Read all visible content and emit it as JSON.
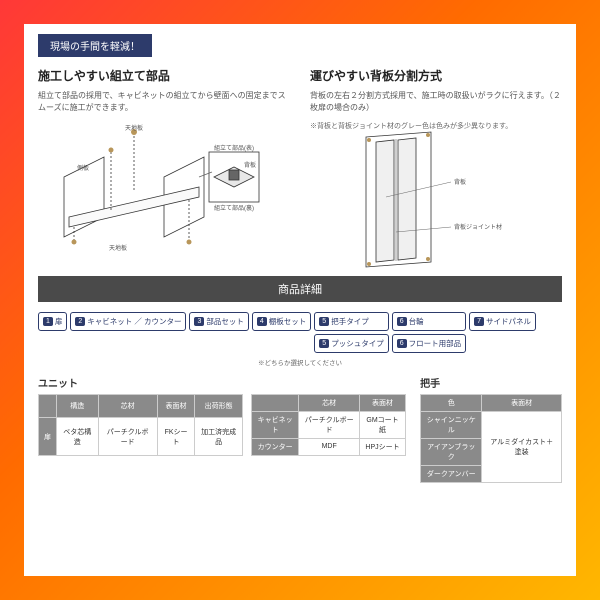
{
  "badge": "現場の手間を軽減！",
  "left": {
    "title": "施工しやすい組立て部品",
    "desc": "組立て部品の採用で、キャビネットの組立てから壁面への固定までスムーズに施工ができます。",
    "labels": {
      "top": "天地板",
      "side": "側板",
      "part": "組立て部品(表)",
      "back": "背板",
      "bottom": "天地板",
      "det": "組立て部品(裏)"
    }
  },
  "right": {
    "title": "運びやすい背板分割方式",
    "desc": "背板の左右２分割方式採用で、施工時の取扱いがラクに行えます。（２枚扉の場合のみ）",
    "note": "※背板と背板ジョイント材のグレー色は色みが多少異なります。",
    "labels": {
      "back": "背板",
      "joint": "背板ジョイント材"
    }
  },
  "sectionTitle": "商品詳細",
  "flow": [
    {
      "n": "1",
      "t": "扉"
    },
    {
      "n": "2",
      "t": "キャビネット ／ カウンター"
    },
    {
      "n": "3",
      "t": "部品セット"
    },
    {
      "n": "4",
      "t": "棚板セット"
    }
  ],
  "flowCol1": [
    {
      "n": "5",
      "t": "把手タイプ"
    },
    {
      "n": "5",
      "t": "プッシュタイプ"
    }
  ],
  "flowCol2": [
    {
      "n": "6",
      "t": "台輪"
    },
    {
      "n": "6",
      "t": "フロート用部品"
    }
  ],
  "flowLast": {
    "n": "7",
    "t": "サイドパネル"
  },
  "flowNote": "※どちらか選択してください",
  "unit": {
    "title": "ユニット",
    "h": [
      "構造",
      "芯材",
      "表面材",
      "出荷形態"
    ],
    "r": [
      "扉",
      "ベタ芯構造",
      "パーチクルボード",
      "FKシート",
      "加工済完成品"
    ],
    "h2": [
      "",
      "芯材",
      "表面材"
    ],
    "r2": [
      [
        "キャビネット",
        "パーチクルボード",
        "GMコート紙"
      ],
      [
        "カウンター",
        "MDF",
        "HPJシート"
      ]
    ]
  },
  "handle": {
    "title": "把手",
    "h": [
      "色",
      "表面材"
    ],
    "r": [
      [
        "シャインニッケル",
        "アルミダイカスト＋塗装"
      ],
      [
        "アイアンブラック",
        ""
      ],
      [
        "ダークアンバー",
        ""
      ]
    ]
  },
  "colors": {
    "navy": "#2d3b6b",
    "grey": "#8a8a8a"
  }
}
